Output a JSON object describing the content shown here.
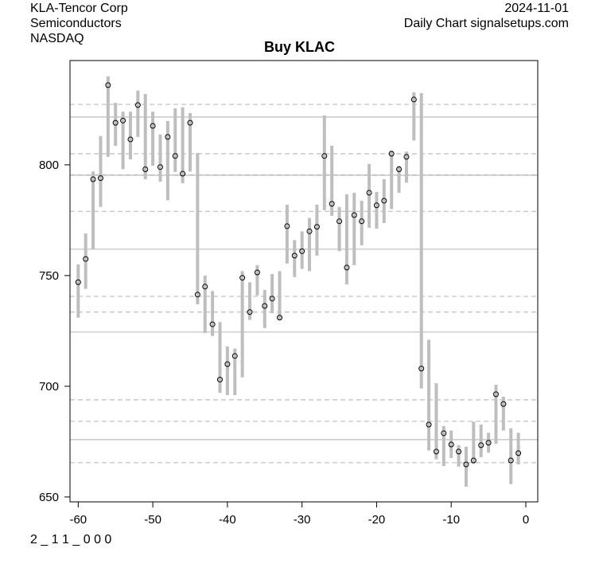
{
  "header": {
    "company": "KLA-Tencor Corp",
    "sector": "Semiconductors",
    "exchange": "NASDAQ",
    "date": "2024-11-01",
    "source": "Daily Chart signalsetups.com"
  },
  "footer_code": "2 _ 1 1 _ 0 0 0",
  "chart_data": {
    "type": "ohlc-range",
    "title": "Buy KLAC",
    "xlabel": "",
    "ylabel": "",
    "xlim": [
      -61.1,
      1.6
    ],
    "ylim": [
      647.8,
      847.1
    ],
    "xticks": [
      -60,
      -50,
      -40,
      -30,
      -20,
      -10,
      0
    ],
    "yticks": [
      650,
      700,
      750,
      800
    ],
    "bar_color": "#bebebe",
    "solid_levels": [
      821.6,
      795.3,
      761.9,
      724.5,
      675.9
    ],
    "dashed_levels": [
      827.3,
      805,
      795.5,
      779,
      740.6,
      733.5,
      693.9,
      684.2,
      665.5
    ],
    "x": [
      -60,
      -59,
      -58,
      -57,
      -56,
      -55,
      -54,
      -53,
      -52,
      -51,
      -50,
      -49,
      -48,
      -47,
      -46,
      -45,
      -44,
      -43,
      -42,
      -41,
      -40,
      -39,
      -38,
      -37,
      -36,
      -35,
      -34,
      -33,
      -32,
      -31,
      -30,
      -29,
      -28,
      -27,
      -26,
      -25,
      -24,
      -23,
      -22,
      -21,
      -20,
      -19,
      -18,
      -17,
      -16,
      -15,
      -14,
      -13,
      -12,
      -11,
      -10,
      -9,
      -8,
      -7,
      -6,
      -5,
      -4,
      -3,
      -2,
      -1
    ],
    "high": [
      755,
      769,
      797,
      813,
      840,
      828,
      824,
      824,
      833.5,
      832,
      824,
      813.7,
      819.8,
      825.5,
      826,
      823.4,
      805.4,
      750,
      743,
      729,
      718,
      717,
      752,
      747,
      754.7,
      743.5,
      750.7,
      752,
      782,
      766,
      770,
      776,
      782,
      822.3,
      808.6,
      781,
      786.7,
      787.4,
      783.8,
      800.4,
      787.8,
      793.5,
      806.5,
      799.6,
      806,
      832.7,
      832.4,
      721,
      701.4,
      682,
      680,
      673.4,
      672.7,
      684,
      682.7,
      679,
      700.7,
      695.3,
      681,
      679
    ],
    "low": [
      731,
      744,
      762,
      781,
      803.6,
      808.6,
      798,
      802.5,
      812.6,
      793.5,
      799.6,
      792.4,
      784,
      796.8,
      791.7,
      797,
      737,
      724,
      722.7,
      697,
      696,
      696,
      704,
      730,
      741,
      726.3,
      733,
      730,
      755.4,
      749.3,
      753,
      752,
      759,
      779.5,
      777,
      761,
      746,
      754.7,
      763.7,
      771.6,
      771.2,
      773.7,
      780,
      787.4,
      792,
      811,
      699,
      671,
      667,
      664,
      667.6,
      663.7,
      654.7,
      665,
      668,
      670,
      674,
      680,
      655.8,
      664.7
    ],
    "close": [
      747,
      757.5,
      793.5,
      794,
      836,
      819,
      820,
      811.5,
      827,
      798,
      817.6,
      799,
      812.6,
      804,
      796,
      819,
      741.4,
      745,
      728,
      703,
      710,
      713.7,
      749,
      733.5,
      751.4,
      736.3,
      739.6,
      731,
      772.3,
      759,
      761,
      770,
      772,
      804,
      782.4,
      774.5,
      753.6,
      777.3,
      774.5,
      787.4,
      781.7,
      783.8,
      805,
      798,
      803.6,
      829.5,
      708,
      682.7,
      670.5,
      678.8,
      673.7,
      670.5,
      664.7,
      666.5,
      673.4,
      674.5,
      696.4,
      692,
      666.5,
      669.8
    ]
  }
}
